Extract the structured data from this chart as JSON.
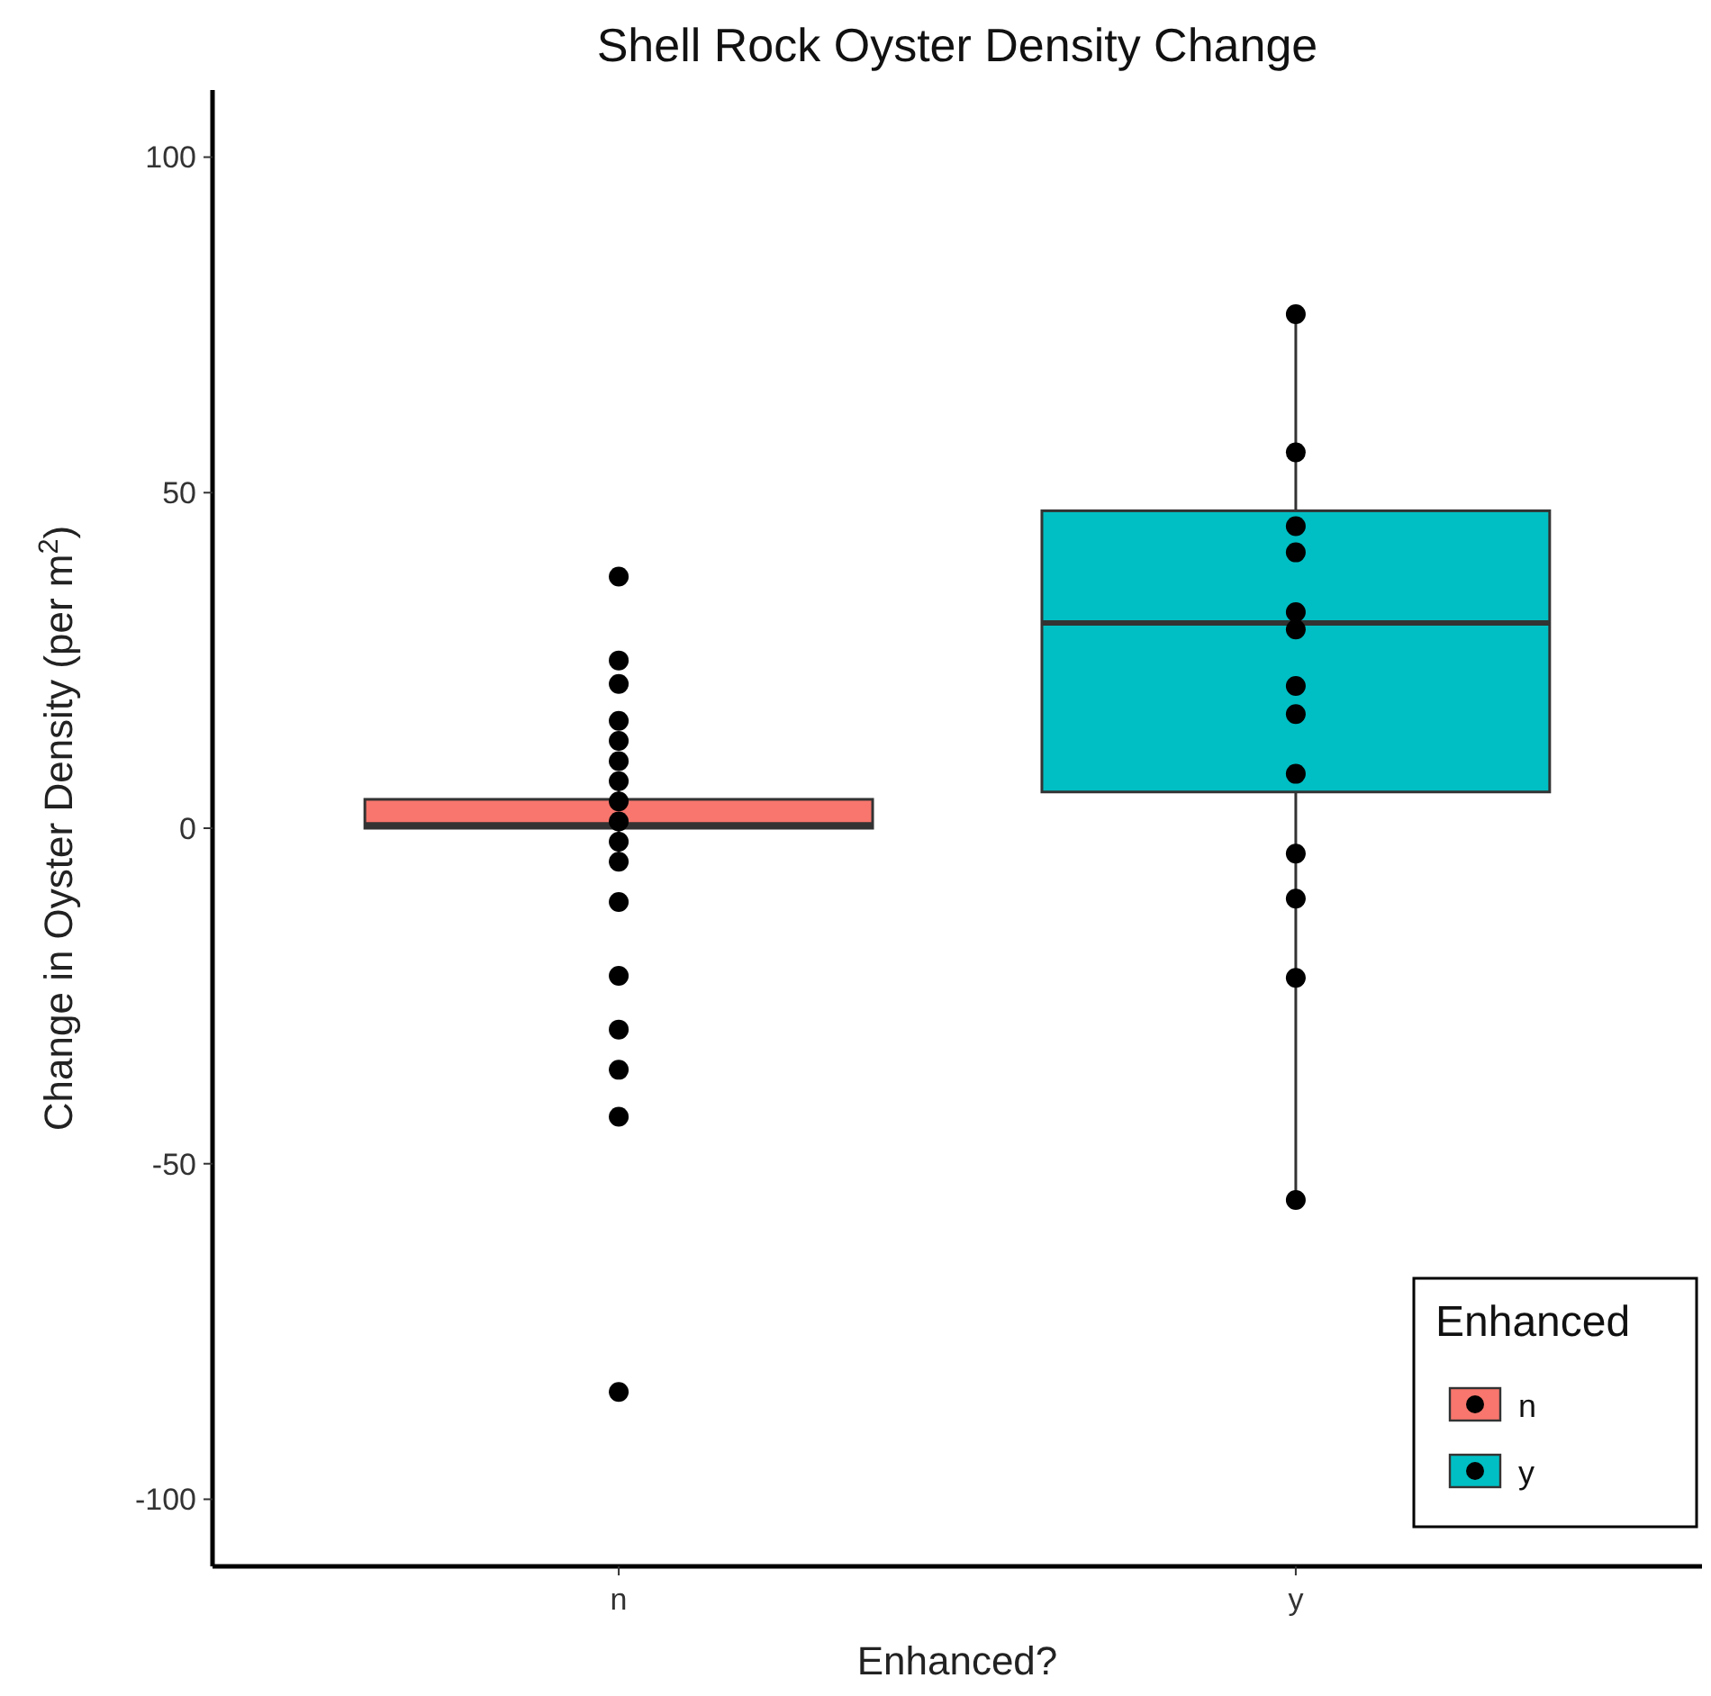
{
  "chart_data": {
    "type": "box",
    "title": "Shell Rock Oyster Density Change",
    "xlabel": "Enhanced?",
    "ylabel": "Change in Oyster Density (per m$^{2}$)",
    "legend_title": "Enhanced",
    "legend": "bottom right",
    "grid": false,
    "categories": [
      "n",
      "y"
    ],
    "ylim": [
      -110,
      110
    ],
    "yticks": [
      -100,
      -50,
      0,
      50,
      100
    ],
    "series": [
      {
        "name": "n",
        "color": "#f8766d",
        "boxes": [
          {
            "low": -6,
            "q1": 0,
            "median": 0.5,
            "q3": 4.3,
            "high": 8
          },
          null
        ]
      },
      {
        "name": "y",
        "color": "#00bfc4",
        "boxes": [
          null,
          {
            "low": -55,
            "q1": 5.4,
            "median": 30.6,
            "q3": 47.3,
            "high": 76.5
          }
        ]
      },
      {
        "type": "scatter",
        "color": "#000000",
        "x": [
          "n",
          "n",
          "n",
          "n",
          "n",
          "n",
          "n",
          "n",
          "n",
          "n",
          "n",
          "n",
          "n",
          "n",
          "n",
          "n",
          "n"
        ],
        "values": [
          37.5,
          25,
          21.5,
          16,
          13,
          10,
          7,
          4,
          1,
          -2,
          -5,
          -11,
          -22,
          -30,
          -36,
          -43,
          -84
        ]
      },
      {
        "type": "scatter",
        "color": "#000000",
        "x": [
          "y",
          "y",
          "y",
          "y",
          "y",
          "y",
          "y",
          "y",
          "y",
          "y",
          "y",
          "y",
          "y"
        ],
        "values": [
          76.6,
          56,
          45,
          41.1,
          32.2,
          29.6,
          21.2,
          17,
          8.1,
          -3.8,
          -10.5,
          -22.3,
          -55.4
        ]
      }
    ],
    "marker": "circle"
  }
}
